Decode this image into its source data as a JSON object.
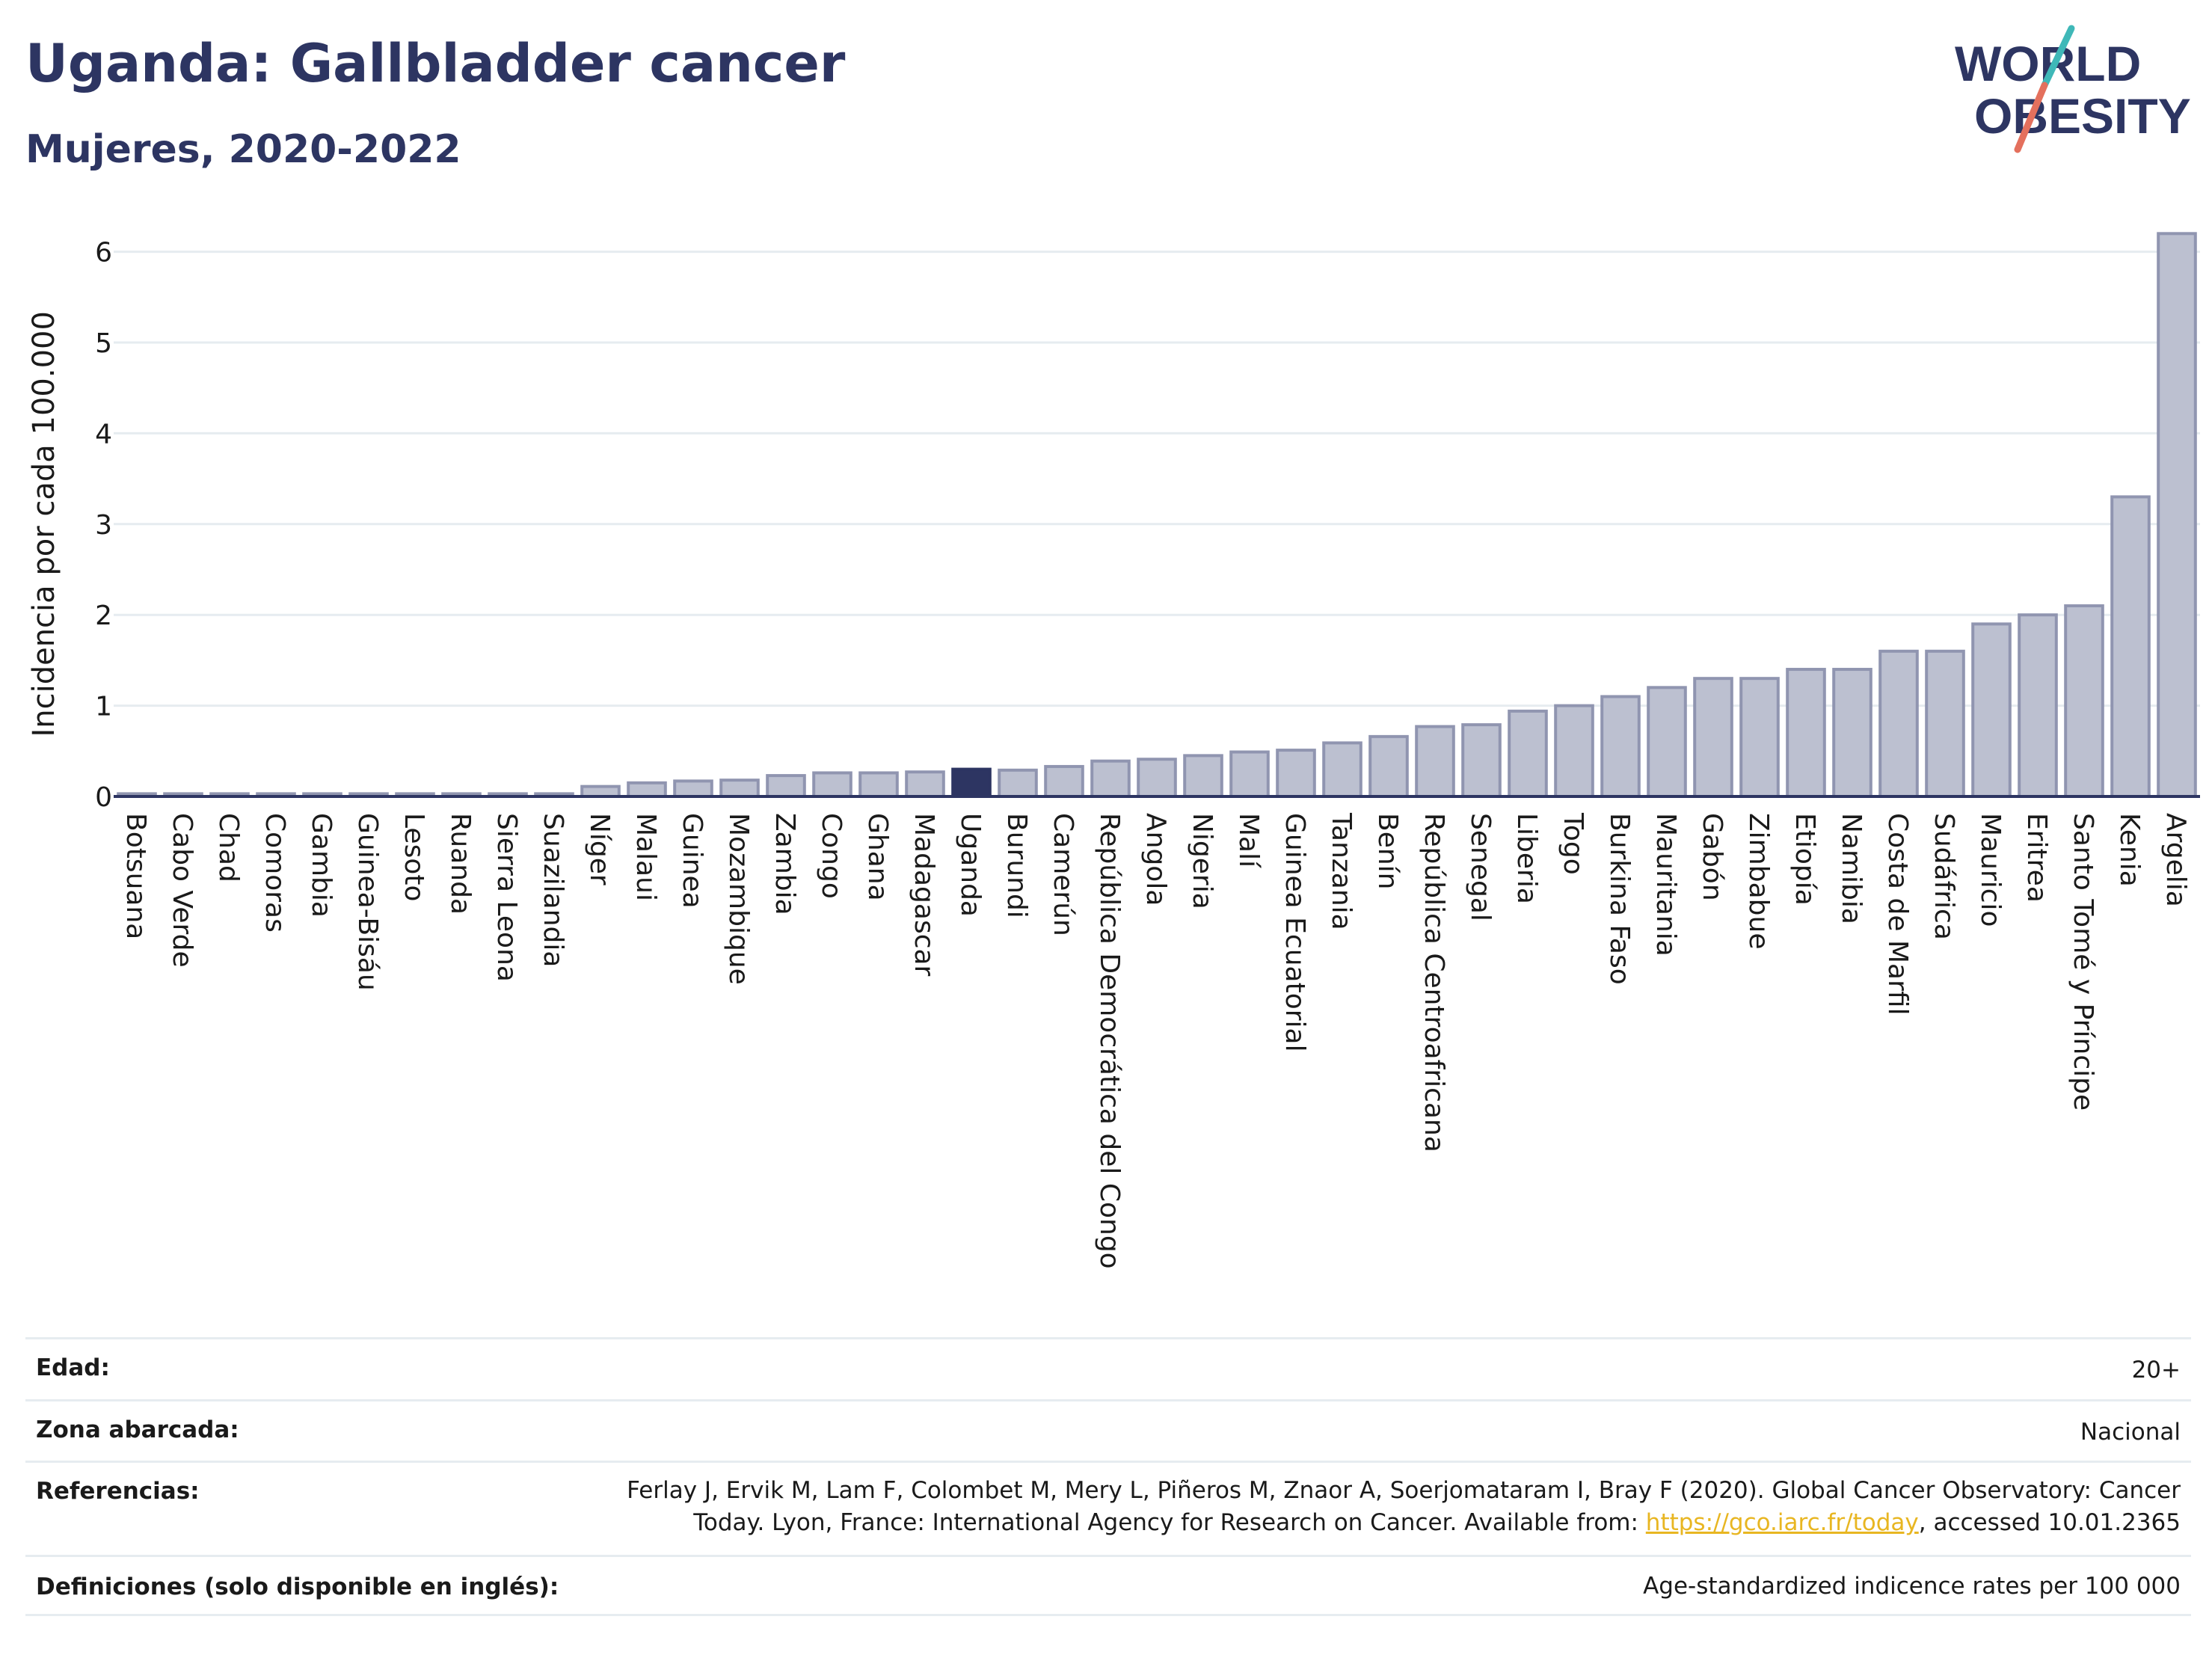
{
  "header": {
    "title": "Uganda: Gallbladder cancer",
    "subtitle": "Mujeres, 2020-2022"
  },
  "logo": {
    "line1": "WORLD",
    "line2": "OBESITY",
    "text_color": "#2d3562",
    "slash_color_top": "#3fb8b8",
    "slash_color_bottom": "#e4705d"
  },
  "colors": {
    "bar_fill": "#bcc0d0",
    "bar_stroke": "#9095b0",
    "highlight": "#2d3562",
    "grid": "#e6ecf0"
  },
  "chart_data": {
    "type": "bar",
    "ylabel": "Incidencia por cada 100.000",
    "xlabel": "",
    "ylim": [
      0,
      6.5
    ],
    "yticks": [
      0,
      1,
      2,
      3,
      4,
      5,
      6
    ],
    "grid": true,
    "highlight_category": "Uganda",
    "categories": [
      "Botsuana",
      "Cabo Verde",
      "Chad",
      "Comoras",
      "Gambia",
      "Guinea-Bisáu",
      "Lesoto",
      "Ruanda",
      "Sierra Leona",
      "Suazilandia",
      "Níger",
      "Malaui",
      "Guinea",
      "Mozambique",
      "Zambia",
      "Congo",
      "Ghana",
      "Madagascar",
      "Uganda",
      "Burundi",
      "Camerún",
      "República Democrática del Congo",
      "Angola",
      "Nigeria",
      "Malí",
      "Guinea Ecuatorial",
      "Tanzania",
      "Benín",
      "República Centroafricana",
      "Senegal",
      "Liberia",
      "Togo",
      "Burkina Faso",
      "Mauritania",
      "Gabón",
      "Zimbabue",
      "Etiopía",
      "Namibia",
      "Costa de Marfil",
      "Sudáfrica",
      "Mauricio",
      "Eritrea",
      "Santo Tomé y Príncipe",
      "Kenia",
      "Argelia"
    ],
    "values": [
      0.03,
      0.03,
      0.03,
      0.03,
      0.03,
      0.03,
      0.03,
      0.03,
      0.03,
      0.03,
      0.11,
      0.15,
      0.17,
      0.18,
      0.23,
      0.26,
      0.26,
      0.27,
      0.3,
      0.29,
      0.33,
      0.39,
      0.41,
      0.45,
      0.49,
      0.51,
      0.59,
      0.66,
      0.77,
      0.79,
      0.94,
      1.0,
      1.1,
      1.2,
      1.3,
      1.3,
      1.4,
      1.4,
      1.6,
      1.6,
      1.9,
      2.0,
      2.1,
      3.3,
      6.2
    ]
  },
  "info": {
    "rows": [
      {
        "label": "Edad:",
        "value": "20+"
      },
      {
        "label": "Zona abarcada:",
        "value": "Nacional"
      },
      {
        "label": "Referencias:",
        "value_line1": "Ferlay J, Ervik M, Lam F, Colombet M, Mery L, Piñeros M, Znaor A, Soerjomataram I, Bray F (2020). Global Cancer Observatory: Cancer",
        "value_line2_pre": "Today. Lyon, France: International Agency for Research on Cancer. Available from: ",
        "link": "https://gco.iarc.fr/today",
        "value_line2_post": ", accessed 10.01.2365"
      },
      {
        "label": "Definiciones (solo disponible en inglés):",
        "value": "Age-standardized indicence rates per 100 000"
      }
    ]
  }
}
